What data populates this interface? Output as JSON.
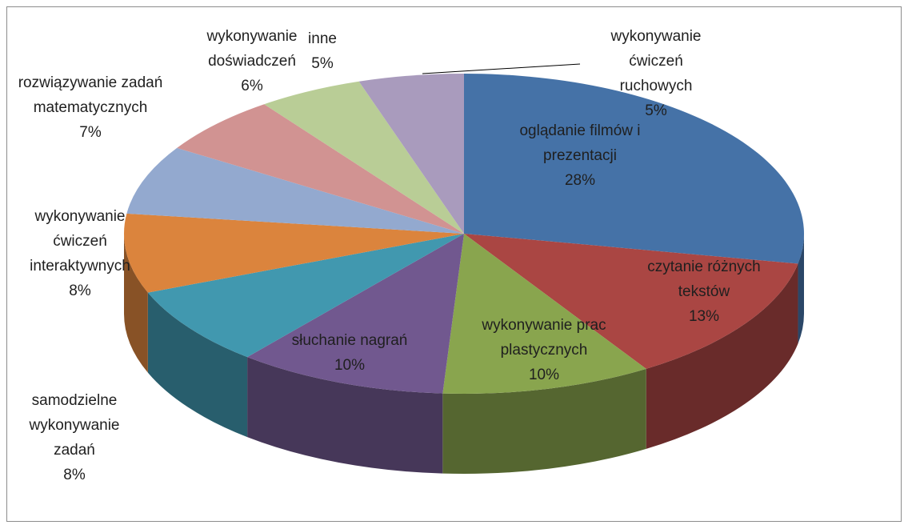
{
  "chart_data": {
    "type": "pie",
    "categories": [
      "oglądanie filmów i prezentacji",
      "czytanie różnych tekstów",
      "wykonywanie prac plastycznych",
      "słuchanie nagrań",
      "samodzielne wykonywanie zadań",
      "wykonywanie ćwiczeń interaktywnych",
      "rozwiązywanie zadań matematycznych",
      "wykonywanie doświadczeń",
      "inne",
      "wykonywanie ćwiczeń ruchowych"
    ],
    "values": [
      28,
      13,
      10,
      10,
      8,
      8,
      7,
      6,
      5,
      5
    ],
    "value_labels": [
      "28%",
      "13%",
      "10%",
      "10%",
      "8%",
      "8%",
      "7%",
      "6%",
      "5%",
      "5%"
    ],
    "colors": [
      "#4572a7",
      "#aa4643",
      "#89a54e",
      "#71588f",
      "#4198af",
      "#db843d",
      "#93a9cf",
      "#d19392",
      "#b9cd96",
      "#a99bbd"
    ]
  }
}
